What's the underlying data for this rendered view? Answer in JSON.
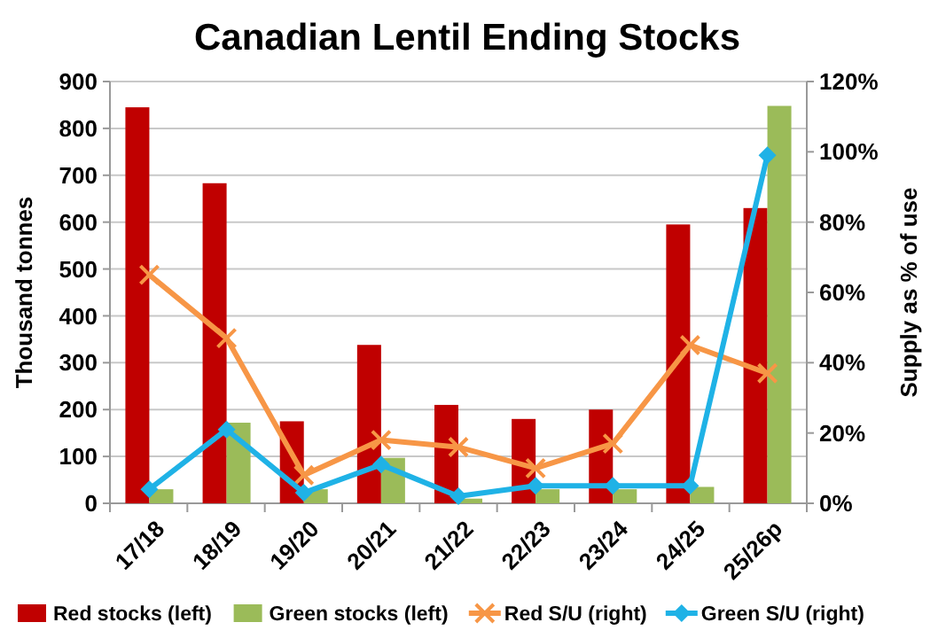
{
  "chart_data": {
    "type": "bar",
    "title": "Canadian Lentil Ending Stocks",
    "ylabel": "Thousand tonnes",
    "y2label": "Supply as % of use",
    "categories": [
      "17/18",
      "18/19",
      "19/20",
      "20/21",
      "21/22",
      "22/23",
      "23/24",
      "24/25",
      "25/26p"
    ],
    "series": [
      {
        "name": "Red stocks (left)",
        "type": "bar",
        "color": "#c00000",
        "values": [
          845,
          683,
          175,
          338,
          210,
          180,
          200,
          595,
          630
        ]
      },
      {
        "name": "Green stocks (left)",
        "type": "bar",
        "color": "#9bbb59",
        "values": [
          30,
          172,
          30,
          97,
          10,
          30,
          30,
          35,
          848
        ]
      },
      {
        "name": "Red S/U (right)",
        "type": "line",
        "axis": "y2",
        "color": "#f79646",
        "marker": "cross",
        "values": [
          65,
          47,
          8,
          18,
          16,
          10,
          17,
          45,
          37
        ]
      },
      {
        "name": "Green S/U (right)",
        "type": "line",
        "axis": "y2",
        "color": "#1fb2e6",
        "marker": "diamond",
        "values": [
          4,
          21,
          3,
          11,
          2,
          5,
          5,
          5,
          99
        ]
      }
    ],
    "ylim": [
      0,
      900
    ],
    "yticks": [
      0,
      100,
      200,
      300,
      400,
      500,
      600,
      700,
      800,
      900
    ],
    "y2lim": [
      0,
      120
    ],
    "y2ticks": [
      {
        "value": 0,
        "label": "0%"
      },
      {
        "value": 20,
        "label": "20%"
      },
      {
        "value": 40,
        "label": "40%"
      },
      {
        "value": 60,
        "label": "60%"
      },
      {
        "value": 80,
        "label": "80%"
      },
      {
        "value": 100,
        "label": "100%"
      },
      {
        "value": 120,
        "label": "120%"
      }
    ],
    "grid": "y",
    "legend": "bottom"
  }
}
